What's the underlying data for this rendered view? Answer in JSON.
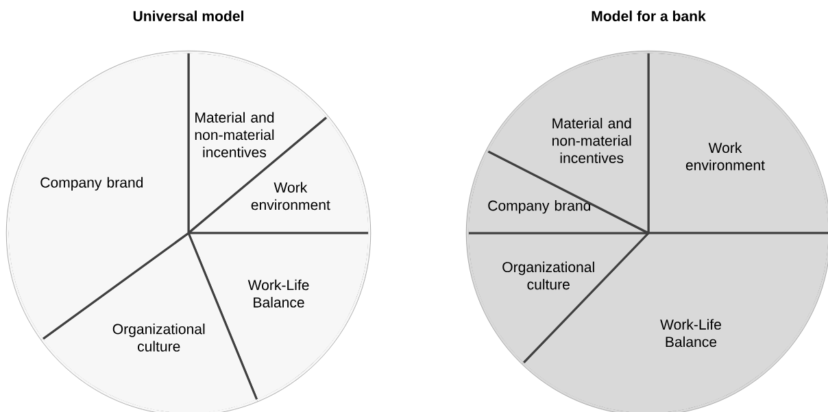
{
  "chart_data": [
    {
      "type": "pie",
      "title": "Universal model",
      "categories": [
        "Material and non-material incentives",
        "Work environment",
        "Work-Life Balance",
        "Organizational culture",
        "Company brand"
      ],
      "values": [
        13.9,
        11.1,
        18.8,
        21.2,
        35.0
      ],
      "colors": [
        "#f7f7f7",
        "#f7f7f7",
        "#f7f7f7",
        "#f7f7f7",
        "#f7f7f7"
      ]
    },
    {
      "type": "pie",
      "title": "Model for a bank",
      "categories": [
        "Work environment",
        "Work-Life Balance",
        "Organizational culture",
        "Company brand",
        "Material and non-material incentives"
      ],
      "values": [
        25.0,
        37.2,
        12.8,
        7.5,
        17.5
      ],
      "colors": [
        "#d9d9d9",
        "#d9d9d9",
        "#d9d9d9",
        "#d9d9d9",
        "#d9d9d9"
      ]
    }
  ]
}
